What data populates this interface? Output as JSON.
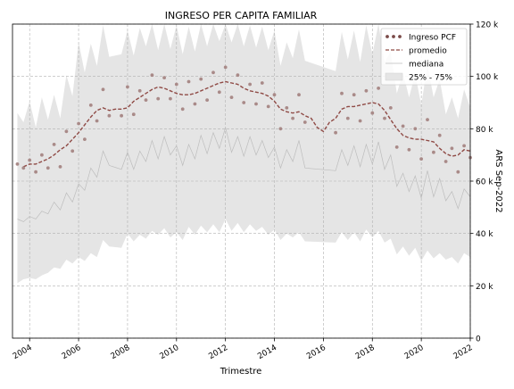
{
  "chart_data": {
    "type": "line",
    "title": "INGRESO PER CAPITA FAMILIAR",
    "xlabel": "Trimestre",
    "ylabel_right": "ARS Sep-2022",
    "xlim": [
      2003.3,
      2022.0
    ],
    "ylim": [
      0,
      120000
    ],
    "x_ticks": [
      {
        "value": 2004,
        "label": "2004"
      },
      {
        "value": 2006,
        "label": "2006"
      },
      {
        "value": 2008,
        "label": "2008"
      },
      {
        "value": 2010,
        "label": "2010"
      },
      {
        "value": 2012,
        "label": "2012"
      },
      {
        "value": 2014,
        "label": "2014"
      },
      {
        "value": 2016,
        "label": "2016"
      },
      {
        "value": 2018,
        "label": "2018"
      },
      {
        "value": 2020,
        "label": "2020"
      },
      {
        "value": 2022,
        "label": "2022"
      }
    ],
    "y_ticks": [
      {
        "value": 0,
        "label": "0"
      },
      {
        "value": 20000,
        "label": "20 k"
      },
      {
        "value": 40000,
        "label": "40 k"
      },
      {
        "value": 60000,
        "label": "60 k"
      },
      {
        "value": 80000,
        "label": "80 k"
      },
      {
        "value": 100000,
        "label": "100 k"
      },
      {
        "value": 120000,
        "label": "120 k"
      }
    ],
    "grid": true,
    "legend_position": "top-right",
    "legend": [
      {
        "key": "ingreso",
        "label": "Ingreso PCF"
      },
      {
        "key": "promedio",
        "label": "promedio"
      },
      {
        "key": "mediana",
        "label": "mediana"
      },
      {
        "key": "band",
        "label": "25% - 75%"
      }
    ],
    "colors": {
      "ingreso": "#a98a88",
      "ingreso_legend": "#7a4a48",
      "promedio": "#8f4a45",
      "mediana": "#bdbdbd",
      "band": "#e5e5e5",
      "grid": "#b0b0b0"
    },
    "series": {
      "ingreso": [
        [
          2003.5,
          66500
        ],
        [
          2003.75,
          65000
        ],
        [
          2004.0,
          68000
        ],
        [
          2004.25,
          63500
        ],
        [
          2004.5,
          70000
        ],
        [
          2004.75,
          65000
        ],
        [
          2005.0,
          74000
        ],
        [
          2005.25,
          65500
        ],
        [
          2005.5,
          79000
        ],
        [
          2005.75,
          71500
        ],
        [
          2006.0,
          82000
        ],
        [
          2006.25,
          76000
        ],
        [
          2006.5,
          89000
        ],
        [
          2006.75,
          83000
        ],
        [
          2007.0,
          95000
        ],
        [
          2007.25,
          85000
        ],
        [
          2007.75,
          85000
        ],
        [
          2008.0,
          96000
        ],
        [
          2008.25,
          85500
        ],
        [
          2008.5,
          94500
        ],
        [
          2008.75,
          91000
        ],
        [
          2009.0,
          100500
        ],
        [
          2009.25,
          91500
        ],
        [
          2009.5,
          99500
        ],
        [
          2009.75,
          91500
        ],
        [
          2010.0,
          97000
        ],
        [
          2010.25,
          87500
        ],
        [
          2010.5,
          98000
        ],
        [
          2010.75,
          89500
        ],
        [
          2011.0,
          99000
        ],
        [
          2011.25,
          91000
        ],
        [
          2011.5,
          101500
        ],
        [
          2011.75,
          94000
        ],
        [
          2012.0,
          103500
        ],
        [
          2012.25,
          92000
        ],
        [
          2012.5,
          100500
        ],
        [
          2012.75,
          90000
        ],
        [
          2013.0,
          97000
        ],
        [
          2013.25,
          89500
        ],
        [
          2013.5,
          97500
        ],
        [
          2013.75,
          88500
        ],
        [
          2014.0,
          93000
        ],
        [
          2014.25,
          80000
        ],
        [
          2014.5,
          88000
        ],
        [
          2014.75,
          84000
        ],
        [
          2015.0,
          93000
        ],
        [
          2015.25,
          82500
        ],
        [
          2016.5,
          78500
        ],
        [
          2016.75,
          93500
        ],
        [
          2017.0,
          84000
        ],
        [
          2017.25,
          93000
        ],
        [
          2017.5,
          83000
        ],
        [
          2017.75,
          94500
        ],
        [
          2018.0,
          86000
        ],
        [
          2018.25,
          95500
        ],
        [
          2018.5,
          84000
        ],
        [
          2018.75,
          88000
        ],
        [
          2019.0,
          73000
        ],
        [
          2019.25,
          81000
        ],
        [
          2019.5,
          72000
        ],
        [
          2019.75,
          80000
        ],
        [
          2020.0,
          68500
        ],
        [
          2020.25,
          83500
        ],
        [
          2020.5,
          71000
        ],
        [
          2020.75,
          77500
        ],
        [
          2021.0,
          67500
        ],
        [
          2021.25,
          72500
        ],
        [
          2021.5,
          63500
        ],
        [
          2021.75,
          73500
        ],
        [
          2022.0,
          69000
        ]
      ],
      "promedio": [
        [
          2003.75,
          65500
        ],
        [
          2004.0,
          66500
        ],
        [
          2004.25,
          66500
        ],
        [
          2004.5,
          67500
        ],
        [
          2004.75,
          68500
        ],
        [
          2005.0,
          70000
        ],
        [
          2005.25,
          72000
        ],
        [
          2005.5,
          73500
        ],
        [
          2005.75,
          76000
        ],
        [
          2006.0,
          78500
        ],
        [
          2006.25,
          81500
        ],
        [
          2006.5,
          84500
        ],
        [
          2006.75,
          87000
        ],
        [
          2007.0,
          88000
        ],
        [
          2007.25,
          87000
        ],
        [
          2007.5,
          87500
        ],
        [
          2007.75,
          87500
        ],
        [
          2008.0,
          88000
        ],
        [
          2008.25,
          90500
        ],
        [
          2008.5,
          92000
        ],
        [
          2008.75,
          93500
        ],
        [
          2009.0,
          95000
        ],
        [
          2009.25,
          96000
        ],
        [
          2009.5,
          95500
        ],
        [
          2009.75,
          94500
        ],
        [
          2010.0,
          93500
        ],
        [
          2010.25,
          93000
        ],
        [
          2010.5,
          93000
        ],
        [
          2010.75,
          93500
        ],
        [
          2011.0,
          94500
        ],
        [
          2011.25,
          95500
        ],
        [
          2011.5,
          96500
        ],
        [
          2011.75,
          97500
        ],
        [
          2012.0,
          98000
        ],
        [
          2012.25,
          97500
        ],
        [
          2012.5,
          97000
        ],
        [
          2012.75,
          95500
        ],
        [
          2013.0,
          94500
        ],
        [
          2013.25,
          94000
        ],
        [
          2013.5,
          93500
        ],
        [
          2013.75,
          92500
        ],
        [
          2014.0,
          90500
        ],
        [
          2014.25,
          87500
        ],
        [
          2014.5,
          86500
        ],
        [
          2014.75,
          86000
        ],
        [
          2015.0,
          86500
        ],
        [
          2015.25,
          85000
        ],
        [
          2015.5,
          84000
        ],
        [
          2015.75,
          80500
        ],
        [
          2016.0,
          79000
        ],
        [
          2016.25,
          82500
        ],
        [
          2016.5,
          84000
        ],
        [
          2016.75,
          87500
        ],
        [
          2017.0,
          88500
        ],
        [
          2017.25,
          88500
        ],
        [
          2017.5,
          89000
        ],
        [
          2017.75,
          89500
        ],
        [
          2018.0,
          90000
        ],
        [
          2018.25,
          89500
        ],
        [
          2018.5,
          87000
        ],
        [
          2018.75,
          83500
        ],
        [
          2019.0,
          80000
        ],
        [
          2019.25,
          77500
        ],
        [
          2019.5,
          76500
        ],
        [
          2019.75,
          76000
        ],
        [
          2020.0,
          76000
        ],
        [
          2020.25,
          75500
        ],
        [
          2020.5,
          75000
        ],
        [
          2020.75,
          72500
        ],
        [
          2021.0,
          70500
        ],
        [
          2021.25,
          69500
        ],
        [
          2021.5,
          70000
        ],
        [
          2021.75,
          72000
        ],
        [
          2022.0,
          71500
        ]
      ],
      "mediana": [
        [
          2003.5,
          45500
        ],
        [
          2003.75,
          44500
        ],
        [
          2004.0,
          46500
        ],
        [
          2004.25,
          45500
        ],
        [
          2004.5,
          48500
        ],
        [
          2004.75,
          47500
        ],
        [
          2005.0,
          52000
        ],
        [
          2005.25,
          49000
        ],
        [
          2005.5,
          55500
        ],
        [
          2005.75,
          52000
        ],
        [
          2006.0,
          59000
        ],
        [
          2006.25,
          56500
        ],
        [
          2006.5,
          65000
        ],
        [
          2006.75,
          61500
        ],
        [
          2007.0,
          71500
        ],
        [
          2007.25,
          66000
        ],
        [
          2007.75,
          64500
        ],
        [
          2008.0,
          71000
        ],
        [
          2008.25,
          64500
        ],
        [
          2008.5,
          71500
        ],
        [
          2008.75,
          67500
        ],
        [
          2009.0,
          75500
        ],
        [
          2009.25,
          68500
        ],
        [
          2009.5,
          77000
        ],
        [
          2009.75,
          70000
        ],
        [
          2010.0,
          73500
        ],
        [
          2010.25,
          66000
        ],
        [
          2010.5,
          74000
        ],
        [
          2010.75,
          68500
        ],
        [
          2011.0,
          77500
        ],
        [
          2011.25,
          70500
        ],
        [
          2011.5,
          78500
        ],
        [
          2011.75,
          72500
        ],
        [
          2012.0,
          80500
        ],
        [
          2012.25,
          71000
        ],
        [
          2012.5,
          77000
        ],
        [
          2012.75,
          69500
        ],
        [
          2013.0,
          77000
        ],
        [
          2013.25,
          70000
        ],
        [
          2013.5,
          75500
        ],
        [
          2013.75,
          69000
        ],
        [
          2014.0,
          73000
        ],
        [
          2014.25,
          65000
        ],
        [
          2014.5,
          72000
        ],
        [
          2014.75,
          67500
        ],
        [
          2015.0,
          75500
        ],
        [
          2015.25,
          65000
        ],
        [
          2016.5,
          64000
        ],
        [
          2016.75,
          72000
        ],
        [
          2017.0,
          66000
        ],
        [
          2017.25,
          73500
        ],
        [
          2017.5,
          65500
        ],
        [
          2017.75,
          74000
        ],
        [
          2018.0,
          66500
        ],
        [
          2018.25,
          75000
        ],
        [
          2018.5,
          64500
        ],
        [
          2018.75,
          70000
        ],
        [
          2019.0,
          58000
        ],
        [
          2019.25,
          63000
        ],
        [
          2019.5,
          56000
        ],
        [
          2019.75,
          62000
        ],
        [
          2020.0,
          53500
        ],
        [
          2020.25,
          64000
        ],
        [
          2020.5,
          54000
        ],
        [
          2020.75,
          61000
        ],
        [
          2021.0,
          52500
        ],
        [
          2021.25,
          56000
        ],
        [
          2021.5,
          49500
        ],
        [
          2021.75,
          57000
        ],
        [
          2022.0,
          54000
        ]
      ],
      "band": [
        [
          2003.5,
          21000,
          86000
        ],
        [
          2003.75,
          22500,
          82500
        ],
        [
          2004.0,
          23000,
          90500
        ],
        [
          2004.25,
          22500,
          80500
        ],
        [
          2004.5,
          24000,
          92000
        ],
        [
          2004.75,
          25000,
          83500
        ],
        [
          2005.0,
          27000,
          93000
        ],
        [
          2005.25,
          26500,
          84000
        ],
        [
          2005.5,
          30000,
          100500
        ],
        [
          2005.75,
          28500,
          92500
        ],
        [
          2006.0,
          31000,
          113000
        ],
        [
          2006.25,
          29500,
          101500
        ],
        [
          2006.5,
          32500,
          112500
        ],
        [
          2006.75,
          31000,
          104000
        ],
        [
          2007.0,
          37500,
          119500
        ],
        [
          2007.25,
          35000,
          107500
        ],
        [
          2007.75,
          34500,
          108500
        ],
        [
          2008.0,
          40000,
          117500
        ],
        [
          2008.25,
          37000,
          108000
        ],
        [
          2008.5,
          39500,
          118500
        ],
        [
          2008.75,
          38000,
          111500
        ],
        [
          2009.0,
          41000,
          120000
        ],
        [
          2009.25,
          39500,
          110000
        ],
        [
          2009.5,
          42000,
          120000
        ],
        [
          2009.75,
          38500,
          110500
        ],
        [
          2010.0,
          40500,
          119500
        ],
        [
          2010.25,
          37500,
          108500
        ],
        [
          2010.5,
          42500,
          119000
        ],
        [
          2010.75,
          39500,
          109500
        ],
        [
          2011.0,
          43000,
          120000
        ],
        [
          2011.25,
          40500,
          111500
        ],
        [
          2011.5,
          43500,
          120000
        ],
        [
          2011.75,
          40500,
          113500
        ],
        [
          2012.0,
          45500,
          120000
        ],
        [
          2012.25,
          41000,
          113000
        ],
        [
          2012.5,
          44000,
          120000
        ],
        [
          2012.75,
          40500,
          111500
        ],
        [
          2013.0,
          43500,
          119500
        ],
        [
          2013.25,
          41000,
          111000
        ],
        [
          2013.5,
          42500,
          119000
        ],
        [
          2013.75,
          39500,
          110000
        ],
        [
          2014.0,
          41500,
          117500
        ],
        [
          2014.25,
          37500,
          104000
        ],
        [
          2014.5,
          40000,
          113000
        ],
        [
          2014.75,
          38500,
          107000
        ],
        [
          2015.0,
          40500,
          118000
        ],
        [
          2015.25,
          37000,
          106000
        ],
        [
          2016.5,
          36500,
          102000
        ],
        [
          2016.75,
          40500,
          117000
        ],
        [
          2017.0,
          37500,
          106500
        ],
        [
          2017.25,
          40500,
          117500
        ],
        [
          2017.5,
          37000,
          105500
        ],
        [
          2017.75,
          41500,
          119500
        ],
        [
          2018.0,
          38500,
          108500
        ],
        [
          2018.25,
          41000,
          120000
        ],
        [
          2018.5,
          36500,
          105500
        ],
        [
          2018.75,
          38000,
          109500
        ],
        [
          2019.0,
          32000,
          93500
        ],
        [
          2019.25,
          35000,
          101500
        ],
        [
          2019.5,
          31500,
          92000
        ],
        [
          2019.75,
          34500,
          101000
        ],
        [
          2020.0,
          29500,
          89000
        ],
        [
          2020.25,
          33500,
          104500
        ],
        [
          2020.5,
          30500,
          92000
        ],
        [
          2020.75,
          32500,
          99000
        ],
        [
          2021.0,
          30000,
          85500
        ],
        [
          2021.25,
          31000,
          92000
        ],
        [
          2021.5,
          28500,
          84000
        ],
        [
          2021.75,
          32500,
          95000
        ],
        [
          2022.0,
          31000,
          88000
        ]
      ]
    }
  }
}
